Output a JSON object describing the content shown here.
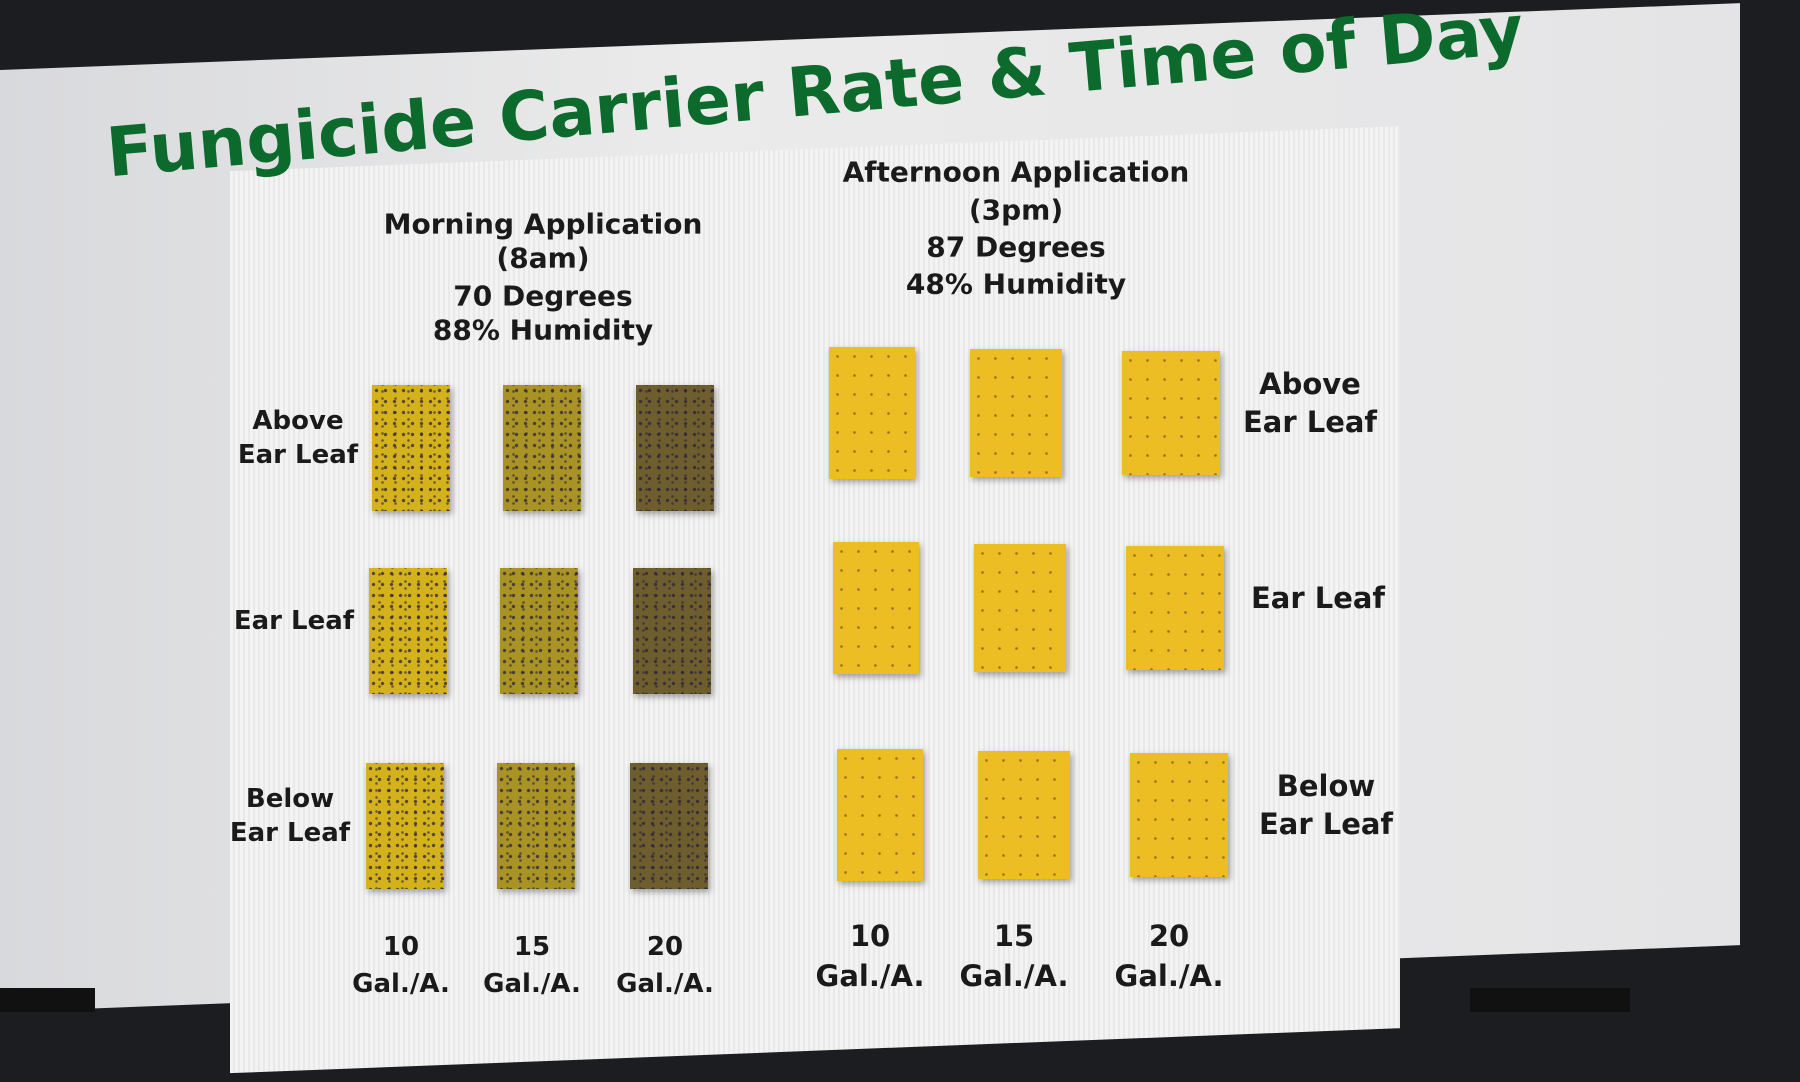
{
  "title": "Fungicide Carrier Rate & Time of Day",
  "morning": {
    "lines": [
      "Morning Application",
      "(8am)",
      "70 Degrees",
      "88% Humidity"
    ],
    "columns": [
      {
        "rate": "10",
        "unit": "Gal./A."
      },
      {
        "rate": "15",
        "unit": "Gal./A."
      },
      {
        "rate": "20",
        "unit": "Gal./A."
      }
    ]
  },
  "afternoon": {
    "lines": [
      "Afternoon Application",
      "(3pm)",
      "87 Degrees",
      "48% Humidity"
    ],
    "columns": [
      {
        "rate": "10",
        "unit": "Gal./A."
      },
      {
        "rate": "15",
        "unit": "Gal./A."
      },
      {
        "rate": "20",
        "unit": "Gal./A."
      }
    ]
  },
  "rows_left": [
    [
      "Above",
      "Ear Leaf"
    ],
    [
      "Ear Leaf"
    ],
    [
      "Below",
      "Ear Leaf"
    ]
  ],
  "rows_right": [
    [
      "Above",
      "Ear Leaf"
    ],
    [
      "Ear Leaf"
    ],
    [
      "Below",
      "Ear Leaf"
    ]
  ]
}
